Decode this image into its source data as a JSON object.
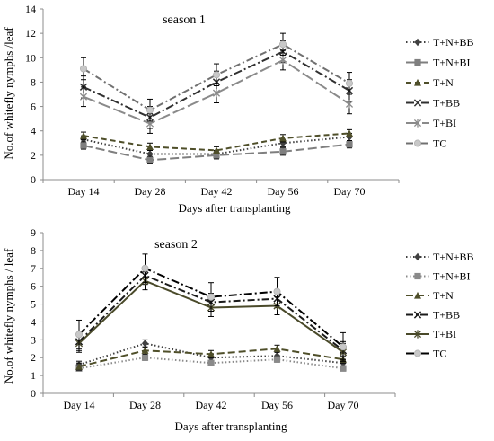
{
  "chart_data": [
    {
      "type": "line",
      "title": "season 1",
      "xlabel": "Days after transplanting",
      "ylabel": "No.of whitefly nymphs /leaf",
      "categories": [
        "Day 14",
        "Day 28",
        "Day 42",
        "Day 56",
        "Day 70"
      ],
      "ylim": [
        0,
        14
      ],
      "yticks": [
        0,
        2,
        4,
        6,
        8,
        10,
        12,
        14
      ],
      "grid": false,
      "legend": "right",
      "series": [
        {
          "name": "T+N+BB",
          "values": [
            3.3,
            2.1,
            2.1,
            3.0,
            3.5
          ],
          "err": [
            0.3,
            0.3,
            0.3,
            0.3,
            0.3
          ],
          "color": "#404040",
          "dash": "1.5,2.5",
          "marker": "diamond"
        },
        {
          "name": "T+N+BI",
          "values": [
            2.8,
            1.6,
            2.0,
            2.3,
            2.9
          ],
          "err": [
            0.3,
            0.3,
            0.3,
            0.3,
            0.3
          ],
          "color": "#7f7f7f",
          "dash": "10,4",
          "marker": "square"
        },
        {
          "name": "T+N",
          "values": [
            3.6,
            2.7,
            2.4,
            3.4,
            3.8
          ],
          "err": [
            0.3,
            0.3,
            0.3,
            0.3,
            0.3
          ],
          "color": "#4f4f2a",
          "dash": "6,4",
          "marker": "triangle"
        },
        {
          "name": "T+BB",
          "values": [
            7.6,
            5.1,
            8.0,
            10.5,
            7.3
          ],
          "err": [
            0.9,
            0.9,
            0.9,
            0.9,
            0.9
          ],
          "color": "#303030",
          "dash": "9,3,2,3",
          "marker": "x"
        },
        {
          "name": "T+BI",
          "values": [
            6.8,
            4.6,
            7.1,
            9.8,
            6.2
          ],
          "err": [
            0.8,
            0.8,
            0.8,
            0.8,
            0.8
          ],
          "color": "#8a8a8a",
          "dash": "14,4",
          "marker": "star"
        },
        {
          "name": "TC",
          "values": [
            9.1,
            5.7,
            8.6,
            11.1,
            7.9
          ],
          "err": [
            0.9,
            0.9,
            0.9,
            0.9,
            0.9
          ],
          "color": "#707070",
          "dash": "8,3,2,3",
          "marker": "circle"
        }
      ]
    },
    {
      "type": "line",
      "title": "season 2",
      "xlabel": "Days after transplanting",
      "ylabel": "No.of whitefly nymphs / leaf",
      "categories": [
        "Day 14",
        "Day 28",
        "Day 42",
        "Day 56",
        "Day 70"
      ],
      "ylim": [
        0,
        9
      ],
      "yticks": [
        0,
        1,
        2,
        3,
        4,
        5,
        6,
        7,
        8,
        9
      ],
      "grid": false,
      "legend": "right",
      "series": [
        {
          "name": "T+N+BB",
          "values": [
            1.6,
            2.8,
            2.0,
            2.1,
            1.7
          ],
          "err": [
            0.2,
            0.2,
            0.2,
            0.2,
            0.2
          ],
          "color": "#404040",
          "dash": "1.5,2.5",
          "marker": "diamond"
        },
        {
          "name": "T+N+BI",
          "values": [
            1.4,
            2.0,
            1.7,
            1.9,
            1.4
          ],
          "err": [
            0.15,
            0.15,
            0.15,
            0.15,
            0.15
          ],
          "color": "#8a8a8a",
          "dash": "1.5,2.5",
          "marker": "square"
        },
        {
          "name": "T+N",
          "values": [
            1.5,
            2.4,
            2.2,
            2.5,
            1.9
          ],
          "err": [
            0.2,
            0.2,
            0.2,
            0.2,
            0.2
          ],
          "color": "#4f4f2a",
          "dash": "8,4",
          "marker": "triangle"
        },
        {
          "name": "T+BB",
          "values": [
            2.9,
            6.6,
            5.1,
            5.3,
            2.4
          ],
          "err": [
            0.5,
            0.5,
            0.5,
            0.5,
            0.5
          ],
          "color": "#1a1a1a",
          "dash": "8,3,2,3",
          "marker": "x"
        },
        {
          "name": "T+BI",
          "values": [
            2.8,
            6.3,
            4.8,
            4.9,
            2.3
          ],
          "err": [
            0.5,
            0.5,
            0.5,
            0.5,
            0.5
          ],
          "color": "#4a4a2a",
          "dash": "",
          "marker": "star"
        },
        {
          "name": "TC",
          "values": [
            3.3,
            7.0,
            5.4,
            5.7,
            2.6
          ],
          "err": [
            0.8,
            0.8,
            0.8,
            0.8,
            0.8
          ],
          "color": "#000000",
          "dash": "9,3,2,3",
          "marker": "circle"
        }
      ]
    }
  ]
}
